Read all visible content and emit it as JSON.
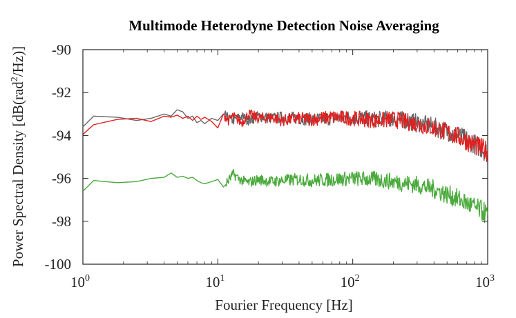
{
  "chart_data": {
    "type": "line",
    "title": "Multimode Heterodyne Detection Noise Averaging",
    "xlabel": "Fourier Frequency [Hz]",
    "ylabel": {
      "prefix": "Power Spectral Density [dB(rad",
      "sup": "2",
      "suffix": "/Hz)]"
    },
    "xscale": "log",
    "xlim": [
      1,
      1000
    ],
    "ylim": [
      -100,
      -90
    ],
    "xticks": [
      {
        "base": "10",
        "exp": "0"
      },
      {
        "base": "10",
        "exp": "1"
      },
      {
        "base": "10",
        "exp": "2"
      },
      {
        "base": "10",
        "exp": "3"
      }
    ],
    "yticks": [
      "-90",
      "-92",
      "-94",
      "-96",
      "-98",
      "-100"
    ],
    "grid": false,
    "series": [
      {
        "color": "#666666",
        "x": [
          1,
          1.2,
          1.8,
          2.5,
          3.2,
          4,
          4.5,
          5,
          5.5,
          6,
          6.5,
          7,
          7.5,
          8,
          9,
          10,
          11,
          12,
          13,
          15,
          17,
          20,
          25,
          30,
          40,
          50,
          70,
          100,
          150,
          200,
          300,
          400,
          500,
          600,
          700,
          800,
          900,
          1000
        ],
        "y": [
          -93.6,
          -93.1,
          -93.15,
          -93.3,
          -93.2,
          -93.0,
          -93.1,
          -92.8,
          -92.9,
          -93.2,
          -93.1,
          -93.4,
          -93.3,
          -93.45,
          -93.2,
          -93.3,
          -93.0,
          -93.2,
          -93.3,
          -93.1,
          -93.3,
          -93.1,
          -93.2,
          -93.15,
          -93.2,
          -93.25,
          -93.2,
          -93.15,
          -93.25,
          -93.2,
          -93.4,
          -93.6,
          -93.8,
          -94.0,
          -94.2,
          -94.4,
          -94.6,
          -94.8
        ]
      },
      {
        "color": "#e02020",
        "x": [
          1,
          1.2,
          1.8,
          2.5,
          3.2,
          4,
          4.5,
          5,
          5.5,
          6,
          6.5,
          7,
          7.5,
          8,
          9,
          10,
          11,
          12,
          13,
          15,
          17,
          20,
          25,
          30,
          40,
          50,
          70,
          100,
          150,
          200,
          300,
          400,
          500,
          600,
          700,
          800,
          900,
          1000
        ],
        "y": [
          -93.95,
          -93.5,
          -93.25,
          -93.2,
          -93.35,
          -93.1,
          -93.15,
          -93.05,
          -93.2,
          -93.1,
          -93.3,
          -93.1,
          -93.25,
          -93.15,
          -93.35,
          -93.65,
          -93.0,
          -93.3,
          -93.1,
          -93.4,
          -93.0,
          -93.2,
          -93.15,
          -93.3,
          -93.2,
          -93.25,
          -93.15,
          -93.2,
          -93.3,
          -93.25,
          -93.45,
          -93.65,
          -93.85,
          -94.05,
          -94.25,
          -94.45,
          -94.6,
          -94.75
        ]
      },
      {
        "color": "#4aaa3c",
        "x": [
          1,
          1.2,
          1.8,
          2.5,
          3.2,
          4,
          4.5,
          5,
          5.5,
          6,
          6.5,
          7,
          7.5,
          8,
          9,
          10,
          11,
          12,
          13,
          15,
          17,
          20,
          25,
          30,
          40,
          50,
          70,
          100,
          150,
          200,
          300,
          400,
          500,
          600,
          700,
          800,
          900,
          1000
        ],
        "y": [
          -96.6,
          -96.1,
          -96.2,
          -96.15,
          -96.0,
          -95.95,
          -95.75,
          -95.95,
          -95.9,
          -96.0,
          -95.95,
          -96.1,
          -96.2,
          -96.25,
          -96.15,
          -96.05,
          -96.4,
          -96.1,
          -95.8,
          -96.1,
          -96.2,
          -96.05,
          -96.15,
          -96.1,
          -96.05,
          -96.1,
          -96.05,
          -96.0,
          -96.05,
          -96.15,
          -96.3,
          -96.5,
          -96.75,
          -96.95,
          -97.15,
          -97.35,
          -97.5,
          -97.7
        ]
      }
    ]
  }
}
